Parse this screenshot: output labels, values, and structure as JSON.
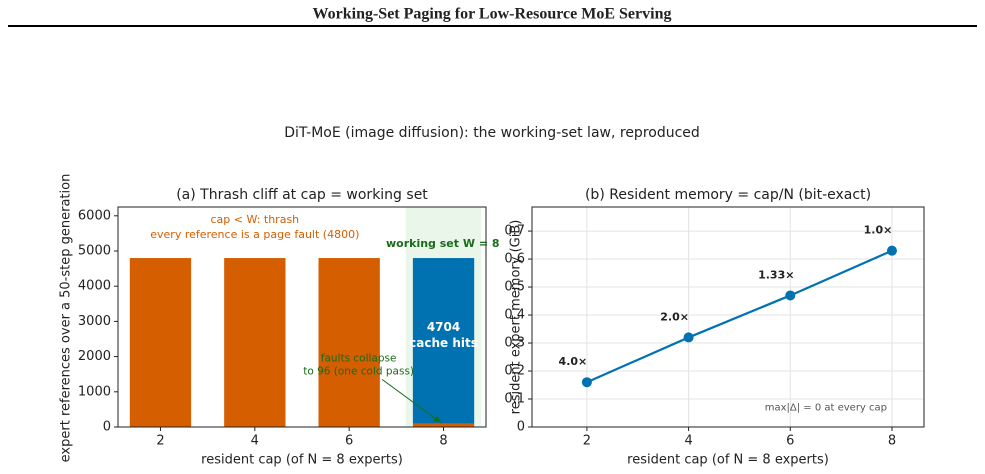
{
  "header": {
    "title": "Working-Set Paging for Low-Resource MoE Serving"
  },
  "figure": {
    "title": "DiT-MoE (image diffusion): the working-set law, reproduced"
  },
  "chart_data": [
    {
      "type": "bar",
      "title": "(a) Thrash cliff at cap  =  working set",
      "x": [
        2,
        4,
        6,
        8
      ],
      "xlim": [
        1.1,
        8.9
      ],
      "xticks": [
        2,
        4,
        6,
        8
      ],
      "series": [
        {
          "color": "#d55e00",
          "values": [
            4800,
            4800,
            4800,
            96
          ]
        },
        {
          "color": "#0072b2",
          "values": [
            0,
            0,
            0,
            4704
          ]
        }
      ],
      "ylim": [
        0,
        6250
      ],
      "yticks": [
        0,
        1000,
        2000,
        3000,
        4000,
        5000,
        6000
      ],
      "xlabel": "resident cap (of N = 8 experts)",
      "ylabel": "expert references over a 50-step generation",
      "thrash_note": [
        "cap  <  W: thrash",
        "every reference is a page fault (4800)"
      ],
      "working_set_label": "working set W = 8",
      "hits_label": "cache hits",
      "fault_note": [
        "faults collapse",
        "to 96 (one cold pass)"
      ],
      "grid": false
    },
    {
      "type": "line",
      "title": "(b) Resident memory  =  cap/N (bit-exact)",
      "x": [
        2,
        4,
        6,
        8
      ],
      "xlim": [
        0.92,
        8.63
      ],
      "xticks": [
        2,
        4,
        6,
        8
      ],
      "series": [
        {
          "color": "#0072b2",
          "values": [
            0.16,
            0.32,
            0.47,
            0.63
          ]
        }
      ],
      "ylim": [
        0,
        0.786
      ],
      "yticks": [
        0.0,
        0.1,
        0.2,
        0.3,
        0.4,
        0.5,
        0.6,
        0.7
      ],
      "ratio_labels": [
        "4.0×",
        "2.0×",
        "1.33×",
        "1.0×"
      ],
      "note": "max|Δ| = 0 at every cap",
      "xlabel": "resident cap (of N = 8 experts)",
      "ylabel": "resident expert memory (GiB)",
      "grid": true
    }
  ]
}
